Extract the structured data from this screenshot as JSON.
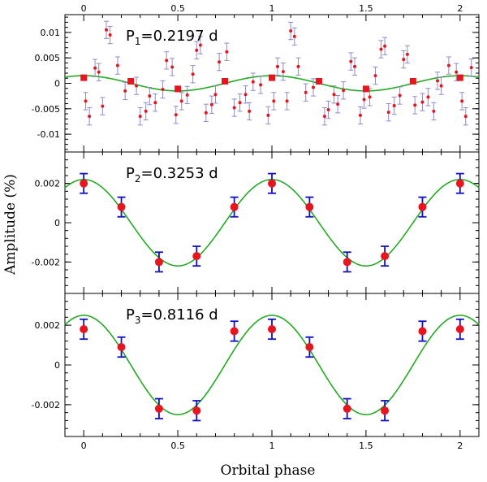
{
  "figure": {
    "xlabel": "Orbital phase",
    "ylabel": "Amplitude (%)"
  },
  "colors": {
    "model_curve": "#22aa22",
    "data_point": "#e8141e",
    "error_bar_panel1": "#8c8cc8",
    "error_bar_panels23": "#1010c0",
    "axes": "#000000"
  },
  "chart_data": [
    {
      "type": "scatter",
      "panel": 1,
      "label_main": "P",
      "label_sub": "1",
      "label_rest": "=0.2197 d",
      "xlim": [
        -0.1,
        2.1
      ],
      "ylim": [
        -0.0135,
        0.0135
      ],
      "x_ticks": [
        0,
        0.5,
        1,
        1.5,
        2
      ],
      "x_tick_labels_top": [
        "0",
        "0.5",
        "1",
        "1.5",
        "2"
      ],
      "y_ticks": [
        -0.01,
        -0.005,
        0,
        0.005,
        0.01
      ],
      "y_tick_labels": [
        "-0.01",
        "-0.005",
        "0",
        "0.005",
        "0.01"
      ],
      "model": {
        "amplitude": 0.0015,
        "period_phase": 1.0,
        "phase_offset": 0
      },
      "binned": {
        "x": [
          0,
          0.25,
          0.5,
          0.75,
          1.0,
          1.25,
          1.5,
          1.75,
          2.0
        ],
        "y": [
          0.0011,
          0.0004,
          -0.0011,
          0.0004,
          0.0011,
          0.0004,
          -0.0011,
          0.0004,
          0.0011
        ]
      },
      "points": {
        "x": [
          0.01,
          0.03,
          0.06,
          0.08,
          0.1,
          0.12,
          0.14,
          0.18,
          0.22,
          0.28,
          0.3,
          0.33,
          0.35,
          0.38,
          0.42,
          0.44,
          0.47,
          0.49,
          0.52,
          0.55,
          0.58,
          0.6,
          0.62,
          0.65,
          0.68,
          0.7,
          0.72,
          0.76,
          0.8,
          0.83,
          0.86,
          0.88,
          0.9,
          0.94,
          0.98,
          1.01,
          1.03,
          1.06,
          1.08,
          1.1,
          1.12,
          1.14,
          1.18,
          1.22,
          1.28,
          1.3,
          1.33,
          1.35,
          1.38,
          1.42,
          1.44,
          1.47,
          1.49,
          1.52,
          1.55,
          1.58,
          1.6,
          1.62,
          1.65,
          1.68,
          1.7,
          1.72,
          1.76,
          1.8,
          1.83,
          1.86,
          1.88,
          1.9,
          1.94,
          1.98,
          2.01,
          2.03,
          2.06
        ],
        "y": [
          -0.0035,
          -0.0065,
          0.003,
          0.0022,
          -0.0045,
          0.0105,
          0.0095,
          0.0035,
          -0.0015,
          -0.0005,
          -0.0065,
          -0.0055,
          -0.0025,
          -0.0038,
          -0.0012,
          0.0045,
          0.0032,
          -0.0062,
          -0.0035,
          -0.0023,
          0.0018,
          0.0065,
          0.0075,
          -0.0058,
          -0.0042,
          -0.0022,
          0.0042,
          0.0062,
          -0.0048,
          -0.0038,
          -0.0022,
          -0.0055,
          0.0003,
          -0.0003,
          -0.0063,
          -0.0035,
          0.0033,
          0.0023,
          -0.0035,
          0.0103,
          0.0092,
          0.0033,
          -0.0018,
          -0.0008,
          -0.0065,
          -0.0052,
          -0.0022,
          -0.0041,
          -0.0014,
          0.0043,
          0.0033,
          -0.0063,
          -0.0032,
          -0.0027,
          0.0015,
          0.0067,
          0.0073,
          -0.0057,
          -0.0044,
          -0.0024,
          0.0047,
          0.0057,
          -0.0043,
          -0.0037,
          -0.0027,
          -0.0055,
          0.0005,
          -0.0005,
          0.0035,
          0.0022,
          -0.0035,
          -0.0065,
          0.0031
        ],
        "yerr": 0.0017
      }
    },
    {
      "type": "scatter",
      "panel": 2,
      "label_main": "P",
      "label_sub": "2",
      "label_rest": "=0.3253 d",
      "xlim": [
        -0.1,
        2.1
      ],
      "ylim": [
        -0.0036,
        0.0036
      ],
      "x_ticks": [
        0,
        0.5,
        1,
        1.5,
        2
      ],
      "y_ticks": [
        -0.002,
        0,
        0.002
      ],
      "y_tick_labels": [
        "-0.002",
        "0",
        "0.002"
      ],
      "model": {
        "amplitude": 0.0022,
        "period_phase": 1.0,
        "phase_offset": 0
      },
      "points": {
        "x": [
          0,
          0.2,
          0.4,
          0.6,
          0.8,
          1.0,
          1.2,
          1.4,
          1.6,
          1.8,
          2.0
        ],
        "y": [
          0.002,
          0.0008,
          -0.002,
          -0.0017,
          0.0008,
          0.002,
          0.0008,
          -0.002,
          -0.0017,
          0.0008,
          0.002
        ],
        "yerr": 0.0005
      }
    },
    {
      "type": "scatter",
      "panel": 3,
      "label_main": "P",
      "label_sub": "3",
      "label_rest": "=0.8116 d",
      "xlim": [
        -0.1,
        2.1
      ],
      "ylim": [
        -0.0036,
        0.0036
      ],
      "x_ticks": [
        0,
        0.5,
        1,
        1.5,
        2
      ],
      "x_tick_labels_bottom": [
        "0",
        "0.5",
        "1",
        "1.5",
        "2"
      ],
      "y_ticks": [
        -0.002,
        0,
        0.002
      ],
      "y_tick_labels": [
        "-0.002",
        "0",
        "0.002"
      ],
      "model": {
        "amplitude": 0.0025,
        "period_phase": 1.0,
        "phase_offset": 0
      },
      "points": {
        "x": [
          0,
          0.2,
          0.4,
          0.6,
          0.8,
          1.0,
          1.2,
          1.4,
          1.6,
          1.8,
          2.0
        ],
        "y": [
          0.0018,
          0.0009,
          -0.0022,
          -0.0023,
          0.0017,
          0.0018,
          0.0009,
          -0.0022,
          -0.0023,
          0.0017,
          0.0018
        ],
        "yerr": 0.0005
      }
    }
  ]
}
